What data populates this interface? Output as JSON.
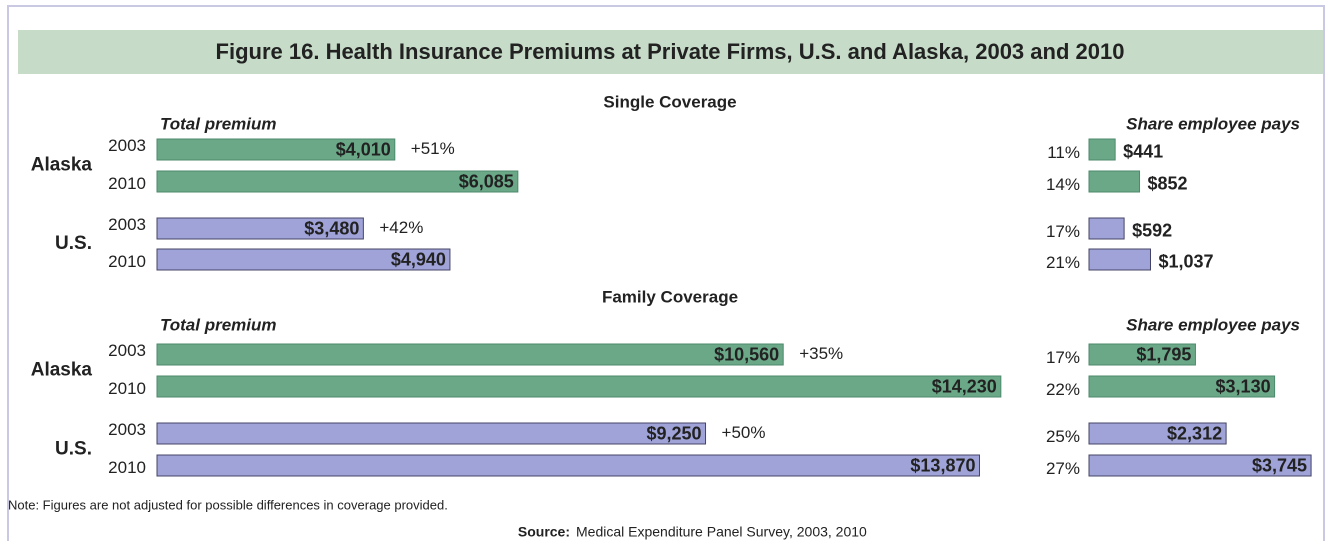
{
  "title": "Figure 16. Health Insurance Premiums at Private Firms, U.S. and Alaska, 2003 and 2010",
  "chart_data": [
    {
      "type": "bar",
      "subtitle": "Single Coverage",
      "left_title": "Total premium",
      "right_title": "Share employee pays",
      "groups": [
        {
          "name": "Alaska",
          "color": "#6aa888",
          "categories": [
            "2003",
            "2010"
          ],
          "values": [
            4010,
            6085
          ],
          "value_labels": [
            "$4,010",
            "$6,085"
          ],
          "change_label": "+51%",
          "share_labels": [
            "11%",
            "14%"
          ],
          "share_values": [
            441,
            852
          ],
          "share_value_labels": [
            "$441",
            "$852"
          ]
        },
        {
          "name": "U.S.",
          "color": "#9fa3d8",
          "categories": [
            "2003",
            "2010"
          ],
          "values": [
            3480,
            4940
          ],
          "value_labels": [
            "$3,480",
            "$4,940"
          ],
          "change_label": "+42%",
          "share_labels": [
            "17%",
            "21%"
          ],
          "share_values": [
            592,
            1037
          ],
          "share_value_labels": [
            "$592",
            "$1,037"
          ]
        }
      ]
    },
    {
      "type": "bar",
      "subtitle": "Family Coverage",
      "left_title": "Total premium",
      "right_title": "Share employee pays",
      "groups": [
        {
          "name": "Alaska",
          "color": "#6aa888",
          "categories": [
            "2003",
            "2010"
          ],
          "values": [
            10560,
            14230
          ],
          "value_labels": [
            "$10,560",
            "$14,230"
          ],
          "change_label": "+35%",
          "share_labels": [
            "17%",
            "22%"
          ],
          "share_values": [
            1795,
            3130
          ],
          "share_value_labels": [
            "$1,795",
            "$3,130"
          ]
        },
        {
          "name": "U.S.",
          "color": "#9fa3d8",
          "categories": [
            "2003",
            "2010"
          ],
          "values": [
            9250,
            13870
          ],
          "value_labels": [
            "$9,250",
            "$13,870"
          ],
          "change_label": "+50%",
          "share_labels": [
            "25%",
            "27%"
          ],
          "share_values": [
            2312,
            3745
          ],
          "share_value_labels": [
            "$2,312",
            "$3,745"
          ]
        }
      ]
    }
  ],
  "note": "Note: Figures are not adjusted for possible differences in coverage provided.",
  "source_label": "Source:",
  "source": "Medical Expenditure Panel Survey, 2003, 2010"
}
